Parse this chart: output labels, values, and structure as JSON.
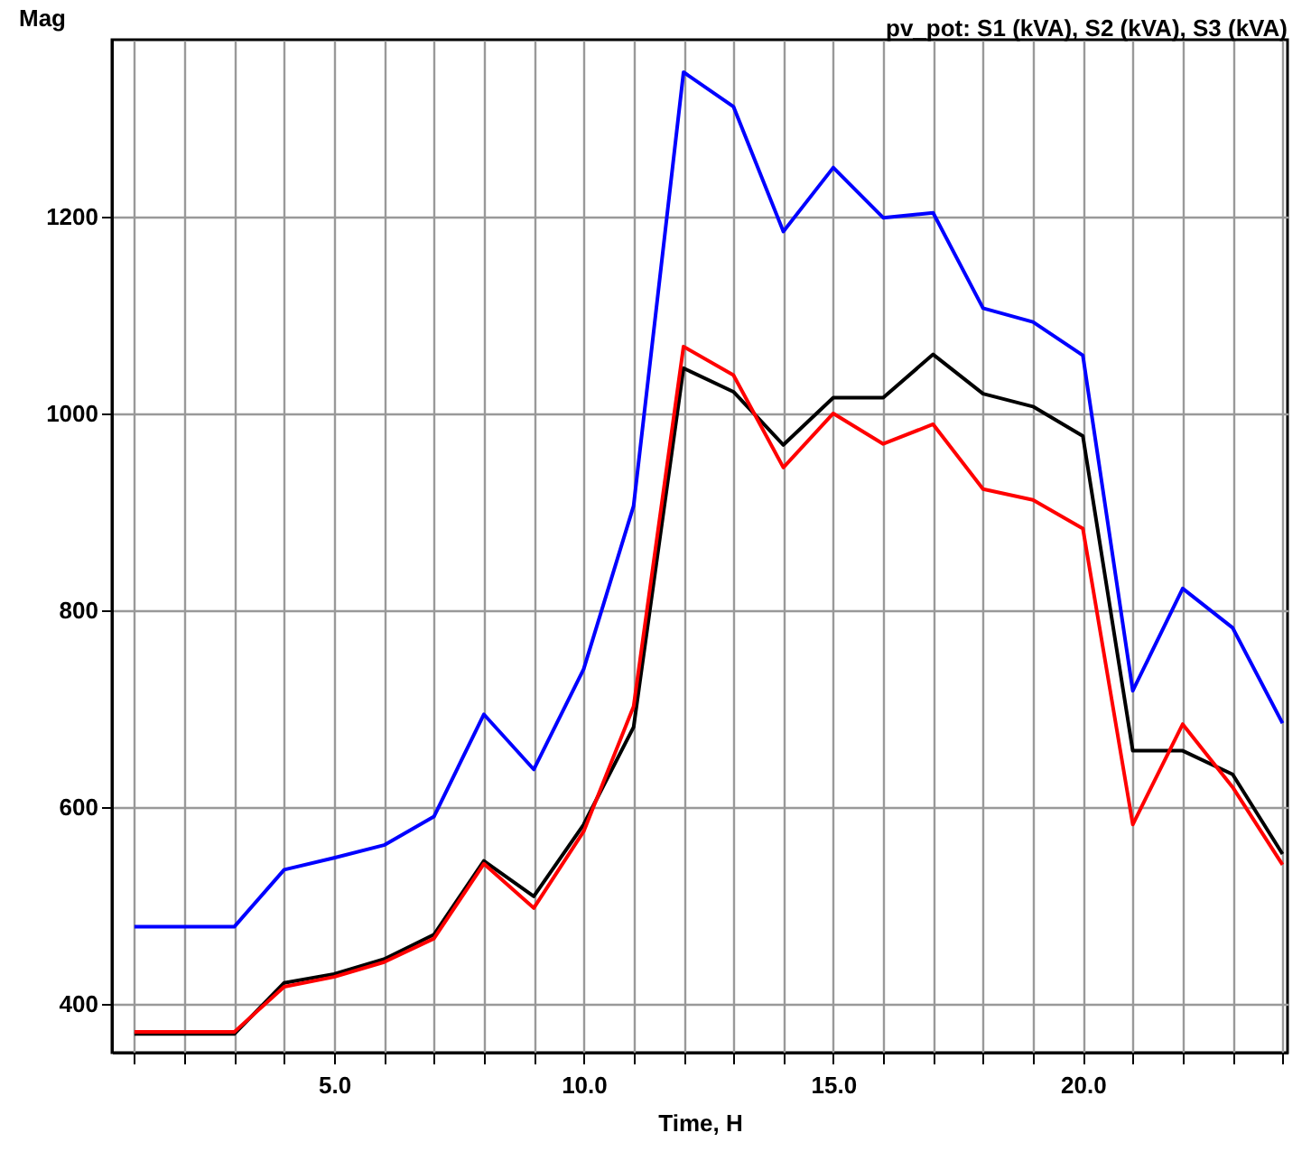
{
  "chart_data": {
    "type": "line",
    "title": "pv_pot:  S1 (kVA),  S2 (kVA),  S3 (kVA)",
    "ylabel": "Mag",
    "xlabel": "Time, H",
    "x": [
      1,
      2,
      3,
      4,
      5,
      6,
      7,
      8,
      9,
      10,
      11,
      12,
      13,
      14,
      15,
      16,
      17,
      18,
      19,
      20,
      21,
      22,
      23,
      24
    ],
    "series": [
      {
        "color": "#0000ff",
        "values": [
          478,
          478,
          478,
          536,
          548,
          561,
          590,
          694,
          638,
          740,
          906,
          1347,
          1312,
          1185,
          1250,
          1199,
          1204,
          1107,
          1093,
          1059,
          718,
          822,
          782,
          685
        ]
      },
      {
        "color": "#000000",
        "values": [
          369,
          369,
          369,
          421,
          430,
          445,
          470,
          545,
          509,
          582,
          681,
          1046,
          1022,
          968,
          1016,
          1016,
          1060,
          1020,
          1007,
          977,
          657,
          657,
          633,
          552
        ]
      },
      {
        "color": "#ff0000",
        "values": [
          371,
          371,
          371,
          417,
          427,
          442,
          466,
          542,
          497,
          575,
          702,
          1068,
          1039,
          945,
          1000,
          969,
          989,
          923,
          912,
          883,
          582,
          684,
          620,
          541
        ]
      }
    ],
    "xlim": [
      0.55,
      24.1
    ],
    "ylim": [
      350,
      1380
    ],
    "xticks": [
      {
        "value": 1,
        "label": null
      },
      {
        "value": 2,
        "label": null
      },
      {
        "value": 3,
        "label": null
      },
      {
        "value": 4,
        "label": null
      },
      {
        "value": 5,
        "label": "5.0"
      },
      {
        "value": 6,
        "label": null
      },
      {
        "value": 7,
        "label": null
      },
      {
        "value": 8,
        "label": null
      },
      {
        "value": 9,
        "label": null
      },
      {
        "value": 10,
        "label": "10.0"
      },
      {
        "value": 11,
        "label": null
      },
      {
        "value": 12,
        "label": null
      },
      {
        "value": 13,
        "label": null
      },
      {
        "value": 14,
        "label": null
      },
      {
        "value": 15,
        "label": "15.0"
      },
      {
        "value": 16,
        "label": null
      },
      {
        "value": 17,
        "label": null
      },
      {
        "value": 18,
        "label": null
      },
      {
        "value": 19,
        "label": null
      },
      {
        "value": 20,
        "label": "20.0"
      },
      {
        "value": 21,
        "label": null
      },
      {
        "value": 22,
        "label": null
      },
      {
        "value": 23,
        "label": null
      },
      {
        "value": 24,
        "label": null
      }
    ],
    "yticks": [
      400,
      600,
      800,
      1000,
      1200
    ],
    "grid": true,
    "legend": false,
    "marker": "none",
    "line_style": "solid"
  }
}
